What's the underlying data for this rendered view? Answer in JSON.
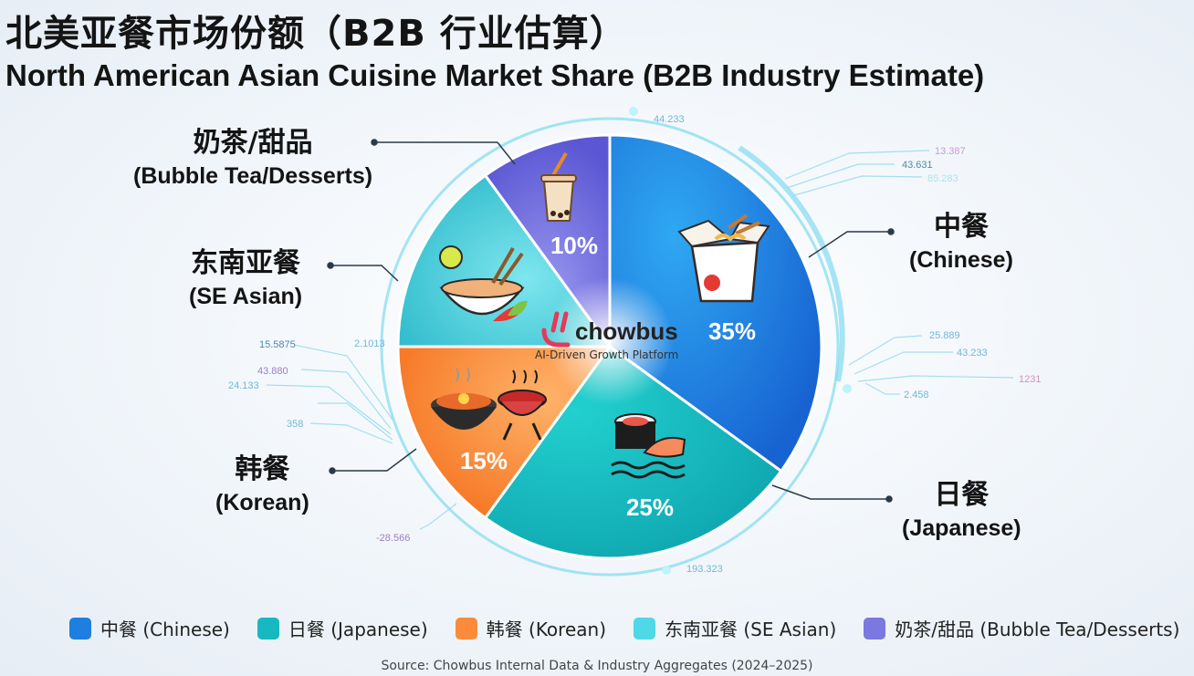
{
  "title_zh": "北美亚餐市场份额（B2B 行业估算）",
  "title_en": "North American Asian Cuisine Market Share (B2B Industry Estimate)",
  "brand": {
    "name": "chowbus",
    "tagline": "AI-Driven Growth Platform"
  },
  "source": "Source: Chowbus Internal Data & Industry Aggregates (2024–2025)",
  "labels": {
    "chinese": {
      "zh": "中餐",
      "en": "(Chinese)"
    },
    "japanese": {
      "zh": "日餐",
      "en": "(Japanese)"
    },
    "korean": {
      "zh": "韩餐",
      "en": "(Korean)"
    },
    "se_asian": {
      "zh": "东南亚餐",
      "en": "(SE Asian)"
    },
    "bubble_tea": {
      "zh": "奶茶/甜品",
      "en": "(Bubble Tea/Desserts)"
    }
  },
  "legend": [
    {
      "label": "中餐 (Chinese)",
      "color": "#1e7fe0"
    },
    {
      "label": "日餐 (Japanese)",
      "color": "#16b9bf"
    },
    {
      "label": "韩餐 (Korean)",
      "color": "#fb8b3a"
    },
    {
      "label": "东南亚餐 (SE Asian)",
      "color": "#4fd8e6"
    },
    {
      "label": "奶茶/甜品 (Bubble Tea/Desserts)",
      "color": "#7b78e0"
    }
  ],
  "decor_numbers": [
    "44.233",
    "13.387",
    "43.631",
    "85.283",
    "25.889",
    "43.233",
    "1231",
    "2.458",
    "2.1013",
    "15.5875",
    "43.880",
    "24.133",
    "358",
    "-28.566",
    "193.323"
  ],
  "icons": [
    "bubble-tea-icon",
    "takeout-box-icon",
    "sushi-icon",
    "kimchi-pot-icon",
    "bbq-grill-icon",
    "pho-bowl-icon",
    "chowbus-logo-icon"
  ],
  "chart_data": {
    "type": "pie",
    "categories": [
      "中餐 (Chinese)",
      "日餐 (Japanese)",
      "韩餐 (Korean)",
      "东南亚餐 (SE Asian)",
      "奶茶/甜品 (Bubble Tea/Desserts)"
    ],
    "values": [
      35,
      25,
      15,
      15,
      10
    ],
    "value_labels": [
      "35%",
      "25%",
      "15%",
      "",
      "10%"
    ],
    "colors": [
      "#1e7fe0",
      "#16b9bf",
      "#fb8b3a",
      "#4fd8e6",
      "#7b78e0"
    ],
    "title": "北美亚餐市场份额（B2B 行业估算）",
    "legend_position": "bottom"
  }
}
